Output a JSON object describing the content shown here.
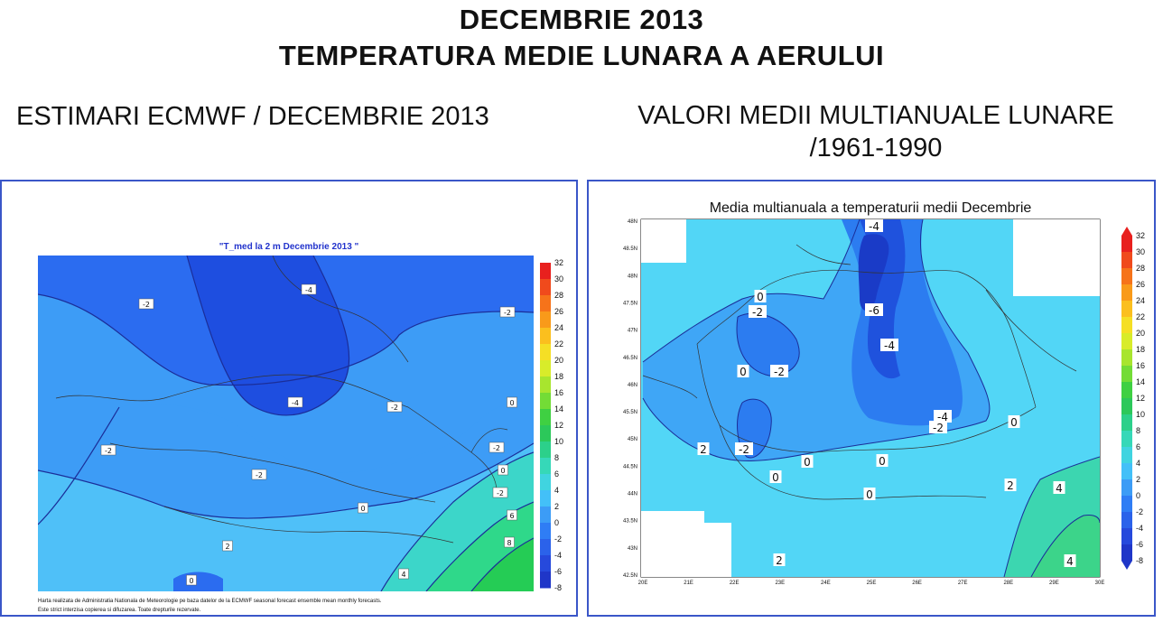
{
  "header": {
    "title_line1": "DECEMBRIE 2013",
    "title_line2": "TEMPERATURA MEDIE LUNARA A AERULUI"
  },
  "left_panel": {
    "heading": "ESTIMARI ECMWF / DECEMBRIE 2013",
    "map_title": "\"T_med la 2 m Decembrie 2013 \"",
    "footer_line1": "Harta realizata de Administratia Nationala de Meteorologie pe baza datelor de la ECMWF seasonal forecast ensemble mean monthly forecasts.",
    "footer_line2": "Este strict interzisa copierea si difuzarea. Toate drepturile rezervate.",
    "contour_labels": [
      "-2",
      "-4",
      "-2",
      "-4",
      "-2",
      "0",
      "-2",
      "-2",
      "0",
      "-2",
      "0",
      "-2",
      "2",
      "4",
      "6",
      "8",
      "0",
      "2",
      "4",
      "2",
      "-2"
    ],
    "colorbar_ticks": [
      "32",
      "30",
      "28",
      "26",
      "24",
      "22",
      "20",
      "18",
      "16",
      "14",
      "12",
      "10",
      "8",
      "6",
      "4",
      "2",
      "0",
      "-2",
      "-4",
      "-6",
      "-8"
    ]
  },
  "right_panel": {
    "heading_line1": "VALORI MEDII MULTIANUALE LUNARE",
    "heading_line2": "/1961-1990",
    "map_title": "Media multianuala a temperaturii medii Decembrie",
    "lat_ticks": [
      "48N",
      "48.5N",
      "48N",
      "47.5N",
      "47N",
      "46.5N",
      "46N",
      "45.5N",
      "45N",
      "44.5N",
      "44N",
      "43.5N",
      "43N",
      "42.5N"
    ],
    "lon_ticks": [
      "20E",
      "21E",
      "22E",
      "23E",
      "24E",
      "25E",
      "26E",
      "27E",
      "28E",
      "29E",
      "30E"
    ],
    "contour_labels": [
      "-4",
      "0",
      "-2",
      "-6",
      "-4",
      "-2",
      "0",
      "0",
      "-4",
      "-2",
      "0",
      "2",
      "-2",
      "0",
      "0",
      "2",
      "0",
      "0",
      "2",
      "4",
      "4"
    ],
    "colorbar_ticks": [
      "32",
      "30",
      "28",
      "26",
      "24",
      "22",
      "20",
      "18",
      "16",
      "14",
      "12",
      "10",
      "8",
      "6",
      "4",
      "2",
      "0",
      "-2",
      "-4",
      "-6",
      "-8"
    ]
  },
  "colors": {
    "panel_border": "#3a56c8",
    "deep_blue": "#1f4fe0",
    "blue": "#2f7df5",
    "light_blue": "#43c0f8",
    "cyan": "#52d8f4",
    "green": "#2fd07a"
  }
}
